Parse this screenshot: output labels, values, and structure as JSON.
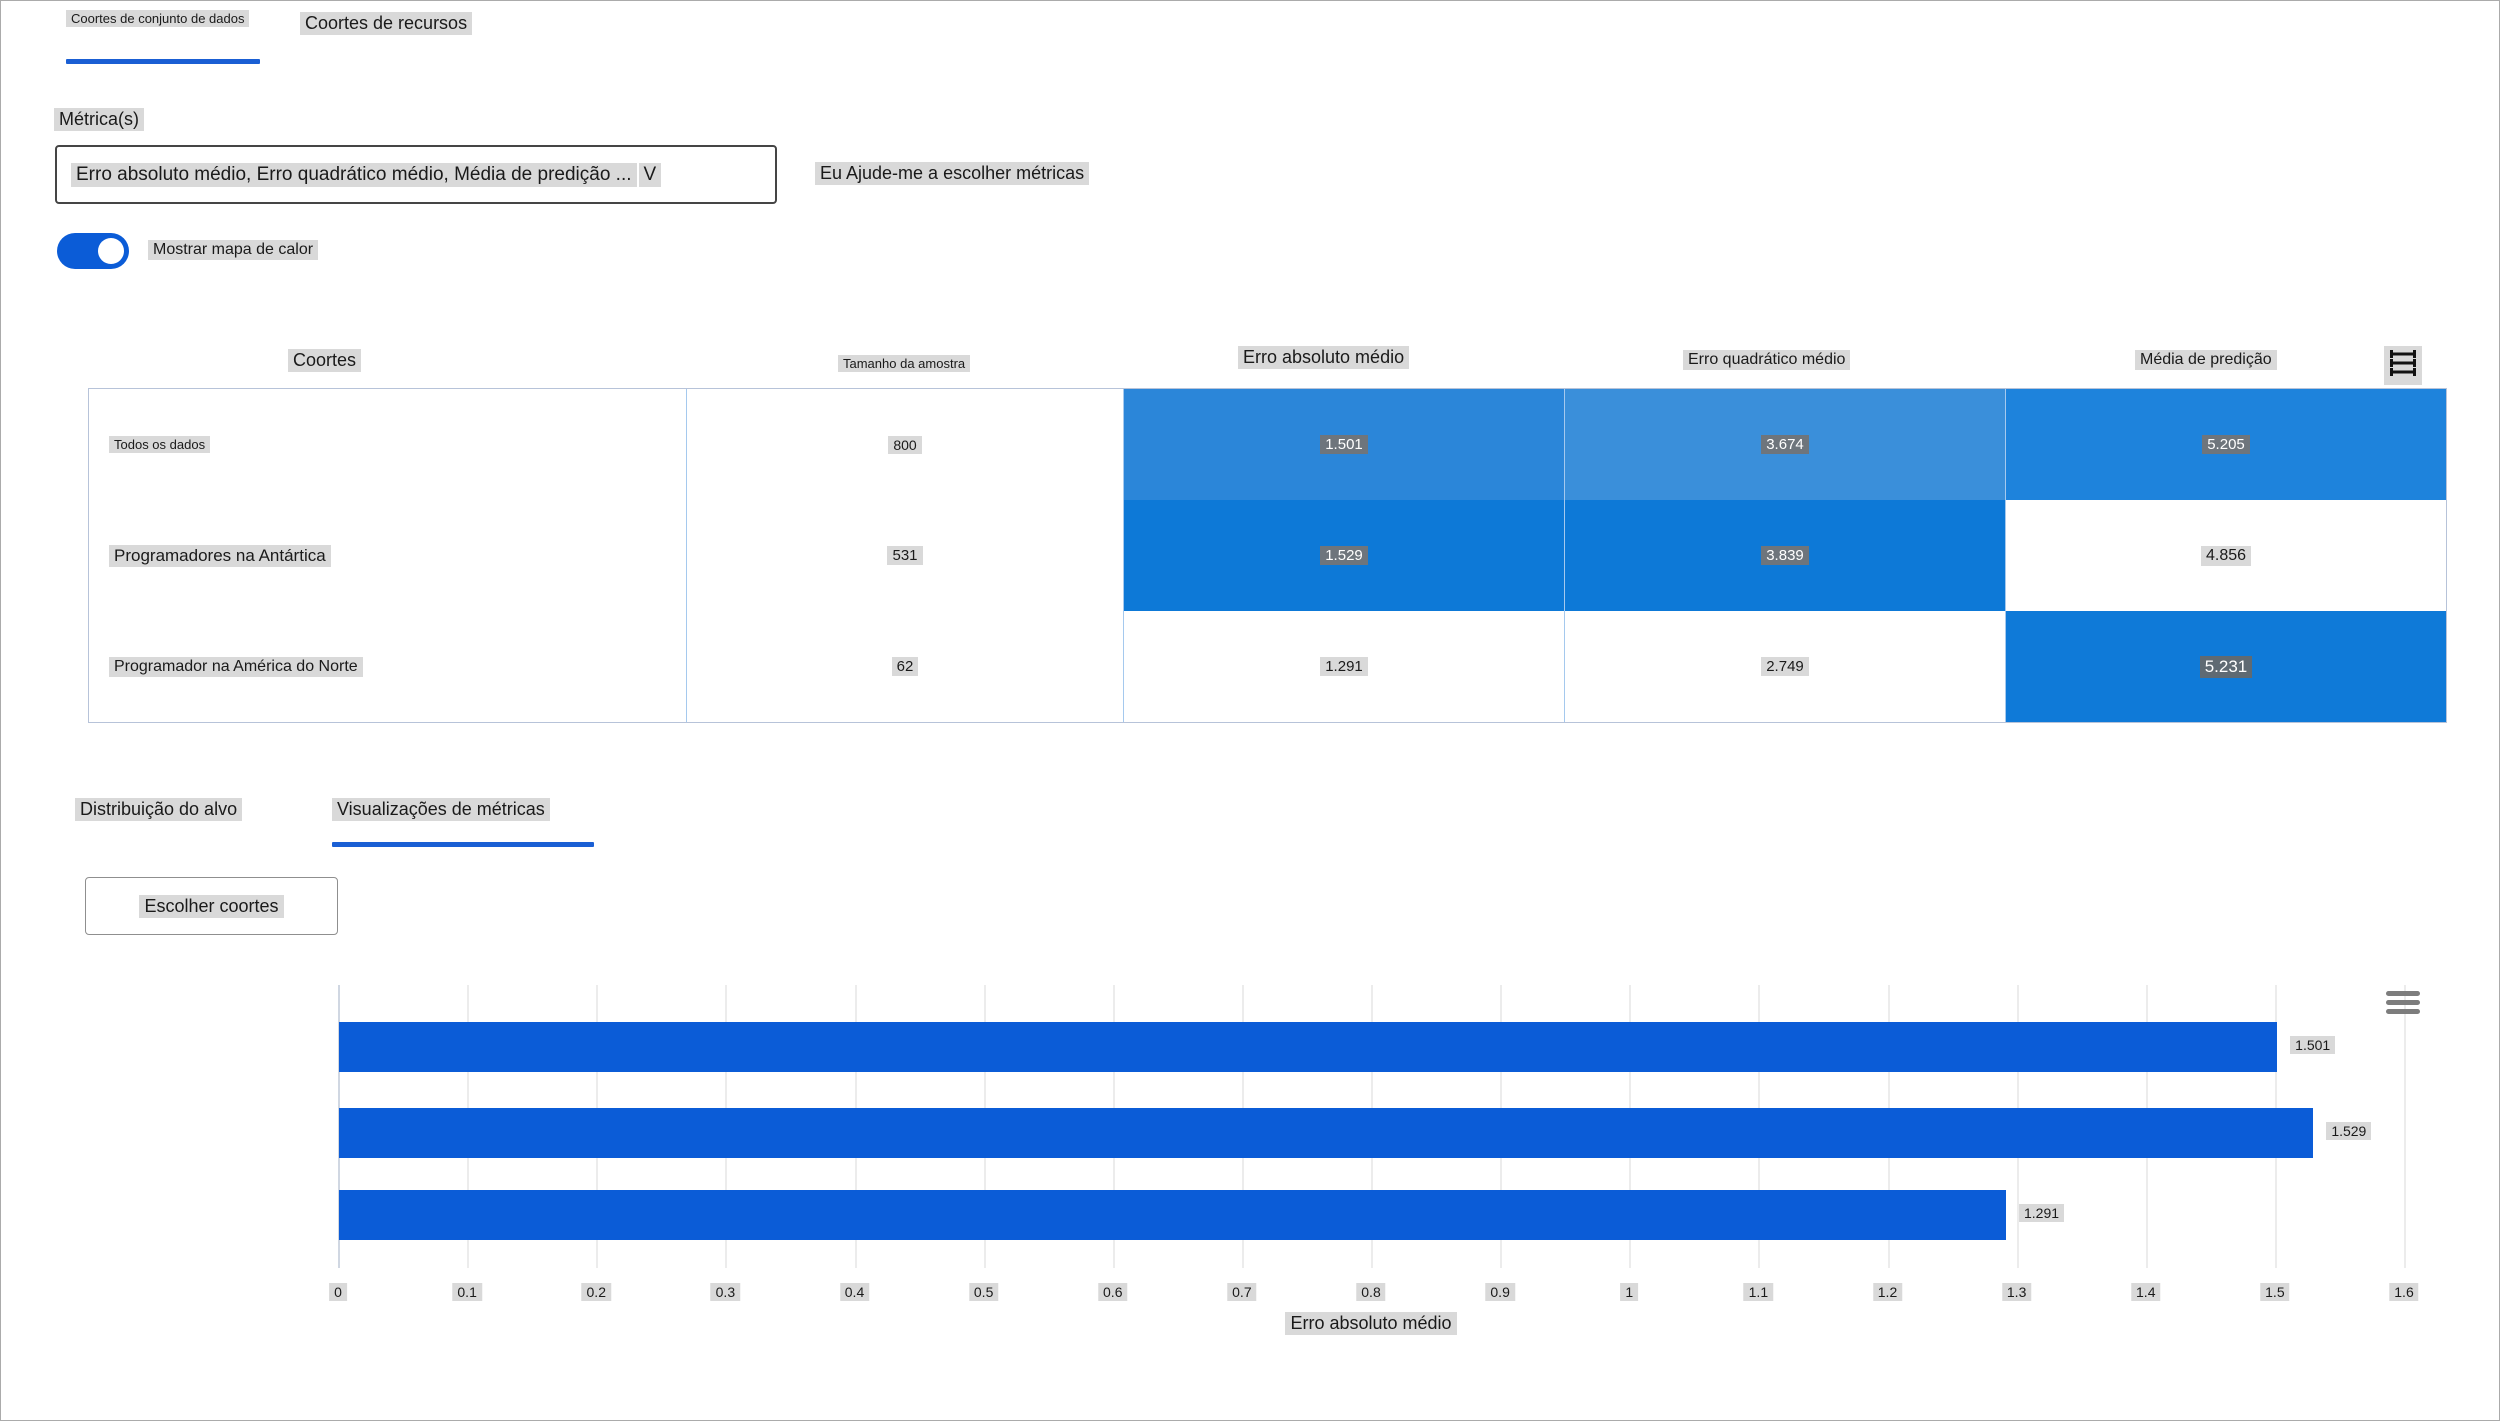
{
  "top_tabs": {
    "dataset_cohorts": "Coortes de conjunto de dados",
    "feature_cohorts": "Coortes de recursos"
  },
  "metrics_panel": {
    "label": "Métrica(s)",
    "selected_value": "Erro absoluto médio, Erro quadrático médio, Média de predição ...",
    "help_link": "Eu Ajude-me a escolher métricas"
  },
  "heatmap_toggle": {
    "label": "Mostrar mapa de calor",
    "state": "on"
  },
  "icons": {
    "dropdown_chevron": "V",
    "table_options_glyph": "☰",
    "chart_menu_glyph": "≡"
  },
  "colors": {
    "accent_blue": "#1a5fd4",
    "bar_blue": "#0b5cd7",
    "toggle_blue": "#0b5cd7",
    "highlight_gray": "#d9d9d9"
  },
  "table": {
    "column_headers": [
      "Coortes",
      "Tamanho da amostra",
      "Erro absoluto médio",
      "Erro quadrático médio",
      "Média de predição"
    ],
    "rows": [
      {
        "name": "Todos os dados",
        "sample_size": "800",
        "cells": [
          {
            "value": "1.501",
            "bg": "#2b86d9",
            "fg": "#ffffff",
            "hl": "#6e757c"
          },
          {
            "value": "3.674",
            "bg": "#3a8fda",
            "fg": "#ffffff",
            "hl": "#6e757c"
          },
          {
            "value": "5.205",
            "bg": "#1e83dc",
            "fg": "#ffffff",
            "hl": "#6e757c"
          }
        ]
      },
      {
        "name": "Programadores na Antártica",
        "sample_size": "531",
        "cells": [
          {
            "value": "1.529",
            "bg": "#0d79d7",
            "fg": "#ffffff",
            "hl": "#6e757c"
          },
          {
            "value": "3.839",
            "bg": "#0d79d7",
            "fg": "#ffffff",
            "hl": "#6e757c"
          },
          {
            "value": "4.856",
            "bg": "#ffffff",
            "fg": "#1a1a1a",
            "hl": "#d9d9d9"
          }
        ]
      },
      {
        "name": "Programador na América do Norte",
        "sample_size": "62",
        "cells": [
          {
            "value": "1.291",
            "bg": "#ffffff",
            "fg": "#1a1a1a",
            "hl": "#d9d9d9"
          },
          {
            "value": "2.749",
            "bg": "#ffffff",
            "fg": "#1a1a1a",
            "hl": "#d9d9d9"
          },
          {
            "value": "5.231",
            "bg": "#0f7ad8",
            "fg": "#ffffff",
            "hl": "#5f6a73"
          }
        ]
      }
    ]
  },
  "cohort_tabs": {
    "target_distribution": "Distribuição do alvo",
    "metric_visualizations": "Visualizações de métricas"
  },
  "choose_cohorts_button": "Escolher coortes",
  "chart_data": {
    "type": "bar",
    "orientation": "horizontal",
    "categories": [
      "Todos os dados",
      "Programadores na Antártica",
      "Programador na América do Norte"
    ],
    "values": [
      1.501,
      1.529,
      1.291
    ],
    "value_labels": [
      "1.501",
      "1.529",
      "1.291"
    ],
    "xlabel": "Erro absoluto médio",
    "xlim": [
      0,
      1.6
    ],
    "xtick_step": 0.1,
    "grid": true,
    "legend": "none",
    "bar_color": "#0b5cd7"
  }
}
